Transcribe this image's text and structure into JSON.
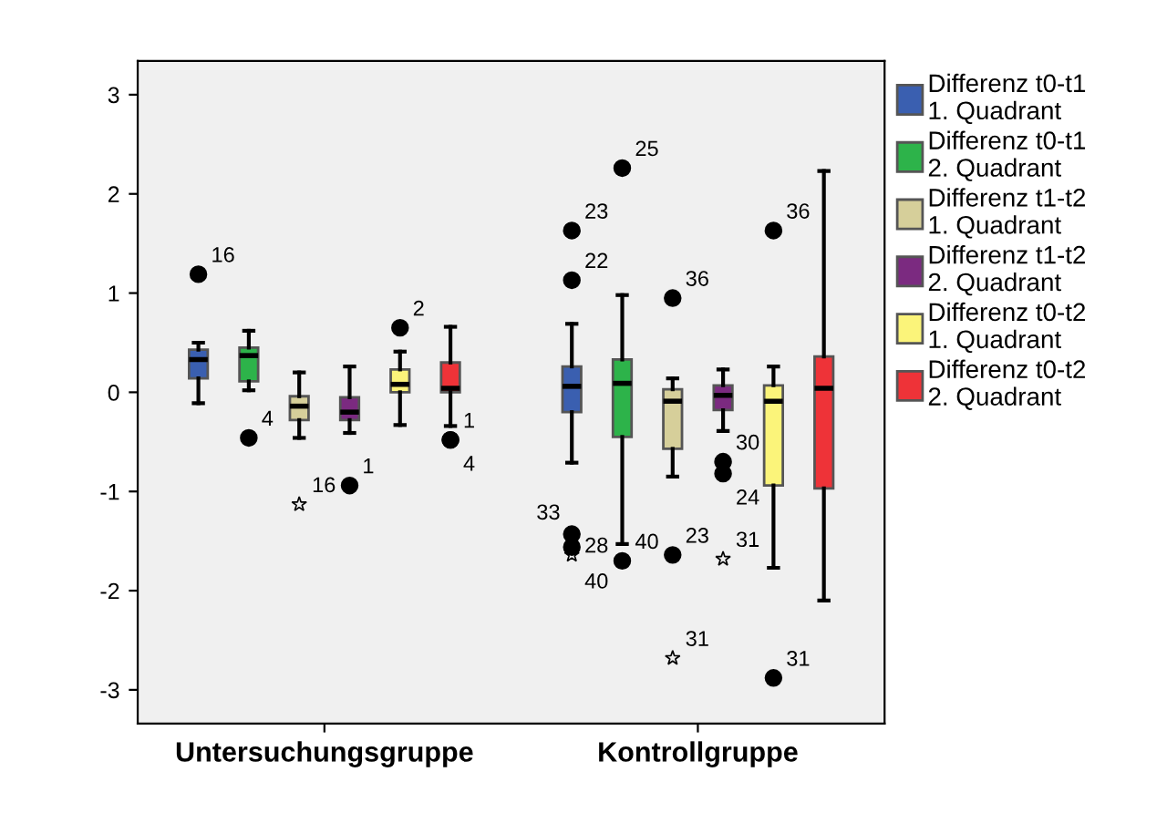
{
  "chart_data": {
    "type": "box",
    "categories": [
      "Untersuchungsgruppe",
      "Kontrollgruppe"
    ],
    "ylim": [
      -3.34,
      3.34
    ],
    "yticks": [
      -3,
      -2,
      -1,
      0,
      1,
      2,
      3
    ],
    "grid": false,
    "legend": "right",
    "series": [
      {
        "name": "Differenz t0-t1\n1. Quadrant",
        "color": "#3a5fb0",
        "boxes": [
          {
            "low": -0.11,
            "q1": 0.14,
            "median": 0.33,
            "q3": 0.43,
            "high": 0.5,
            "outliers": [
              1.19
            ]
          },
          {
            "low": -0.71,
            "q1": -0.2,
            "median": 0.06,
            "q3": 0.26,
            "high": 0.69,
            "outliers": [
              1.63,
              1.13,
              -1.43,
              -1.56,
              -1.64
            ]
          }
        ]
      },
      {
        "name": "Differenz t0-t1\n2. Quadrant",
        "color": "#2db34a",
        "boxes": [
          {
            "low": 0.02,
            "q1": 0.11,
            "median": 0.37,
            "q3": 0.45,
            "high": 0.62,
            "outliers": [
              -0.46
            ]
          },
          {
            "low": -1.53,
            "q1": -0.45,
            "median": 0.09,
            "q3": 0.33,
            "high": 0.98,
            "outliers": [
              2.26,
              -1.7
            ]
          }
        ]
      },
      {
        "name": "Differenz t1-t2\n1. Quadrant",
        "color": "#d6cf9a",
        "boxes": [
          {
            "low": -0.46,
            "q1": -0.28,
            "median": -0.14,
            "q3": -0.04,
            "high": 0.2,
            "outliers": [
              -1.13
            ]
          },
          {
            "low": -0.85,
            "q1": -0.57,
            "median": -0.09,
            "q3": 0.03,
            "high": 0.14,
            "outliers": [
              0.95,
              -1.64,
              -2.68
            ]
          }
        ]
      },
      {
        "name": "Differenz t1-t2\n2. Quadrant",
        "color": "#7b2a80",
        "boxes": [
          {
            "low": -0.41,
            "q1": -0.28,
            "median": -0.2,
            "q3": -0.05,
            "high": 0.26,
            "outliers": [
              -0.94
            ]
          },
          {
            "low": -0.39,
            "q1": -0.18,
            "median": -0.03,
            "q3": 0.07,
            "high": 0.23,
            "outliers": [
              -0.7,
              -0.82,
              -1.68
            ]
          }
        ]
      },
      {
        "name": "Differenz t0-t2\n1. Quadrant",
        "color": "#fbf47a",
        "boxes": [
          {
            "low": -0.33,
            "q1": 0.0,
            "median": 0.08,
            "q3": 0.23,
            "high": 0.41,
            "outliers": [
              0.65
            ]
          },
          {
            "low": -1.77,
            "q1": -0.94,
            "median": -0.09,
            "q3": 0.07,
            "high": 0.26,
            "outliers": [
              1.63,
              -2.88
            ]
          }
        ]
      },
      {
        "name": "Differenz t0-t2\n2. Quadrant",
        "color": "#ee3338",
        "boxes": [
          {
            "low": -0.34,
            "q1": 0.0,
            "median": 0.04,
            "q3": 0.3,
            "high": 0.66,
            "outliers": [
              -0.48,
              -0.48
            ]
          },
          {
            "low": -2.1,
            "q1": -0.97,
            "median": 0.04,
            "q3": 0.36,
            "high": 2.23
          }
        ]
      }
    ],
    "annotations": [
      "16",
      "23",
      "22",
      "33",
      "28",
      "40",
      "4",
      "25",
      "40",
      "16",
      "36",
      "23",
      "31",
      "1",
      "30",
      "24",
      "31",
      "2",
      "36",
      "31",
      "1",
      "4"
    ]
  }
}
